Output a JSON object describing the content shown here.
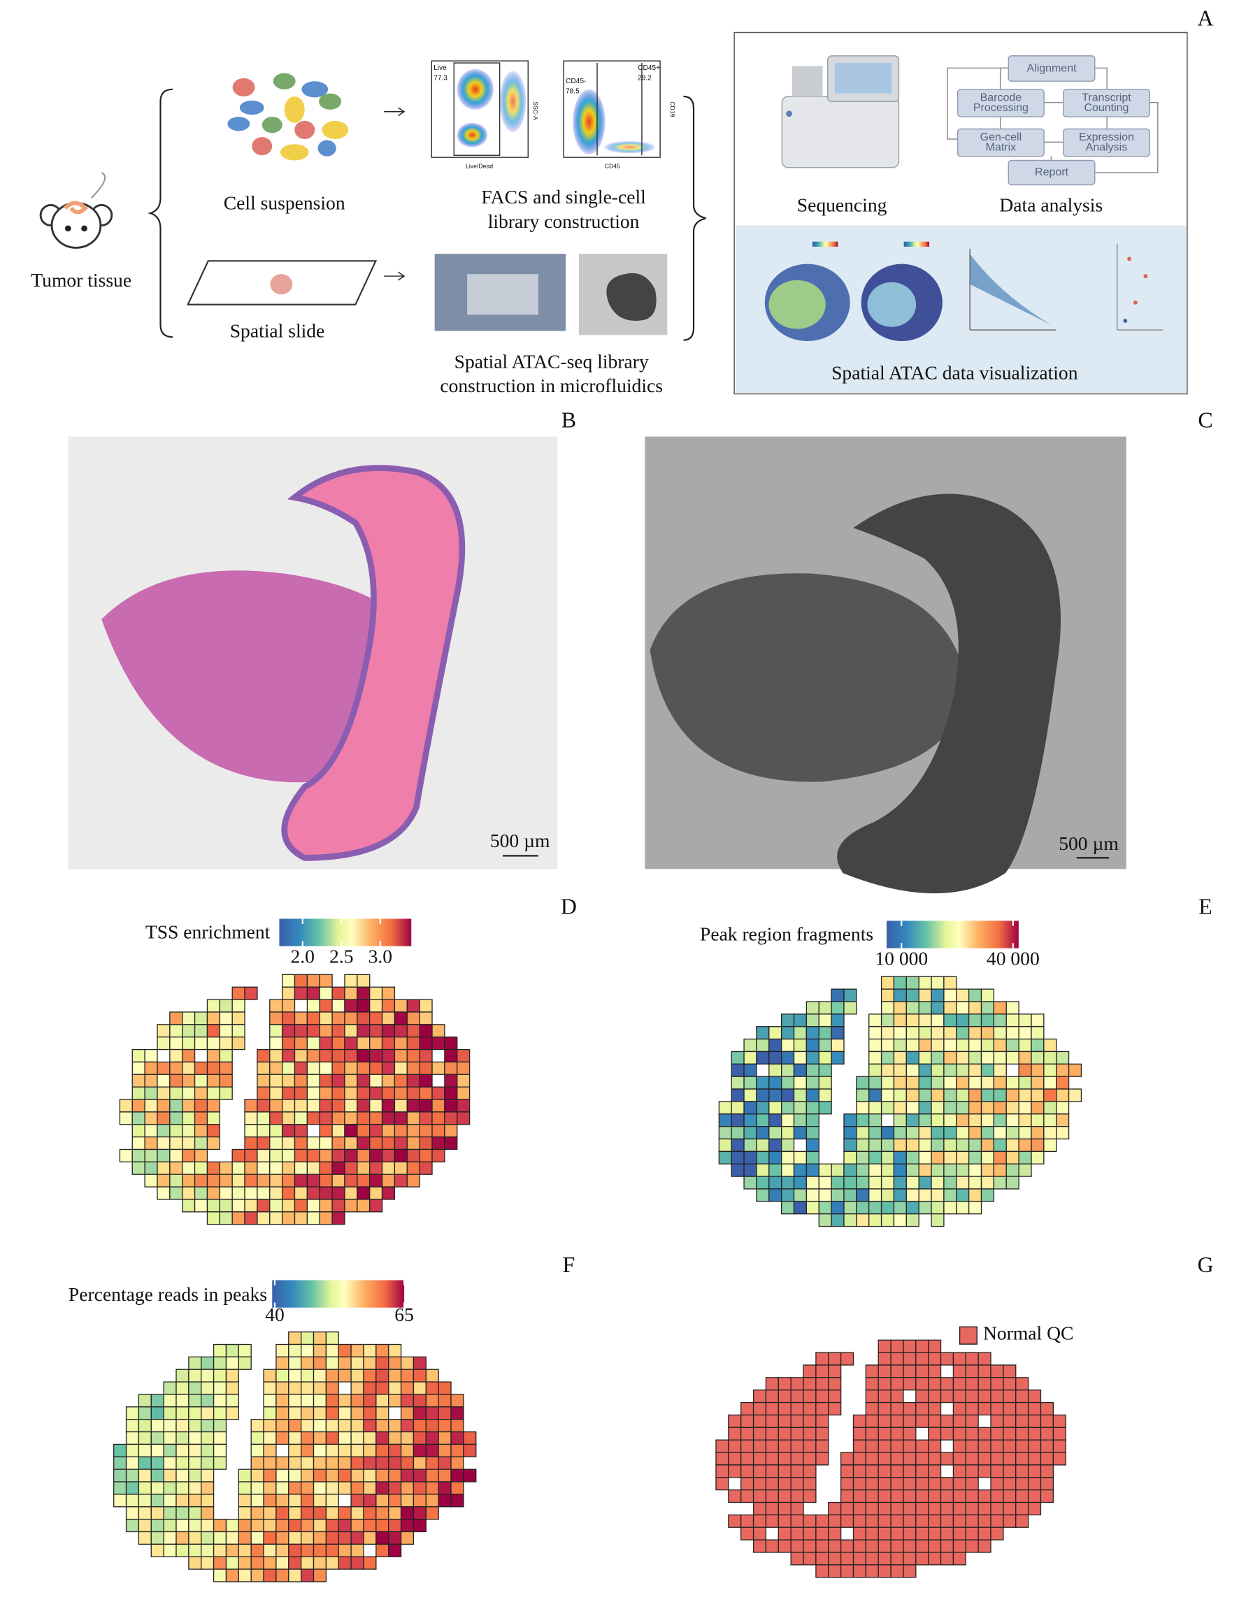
{
  "panels": [
    "A",
    "B",
    "C",
    "D",
    "E",
    "F",
    "G"
  ],
  "panel_a": {
    "tumor_tissue": "Tumor tissue",
    "cell_suspension": "Cell suspension",
    "spatial_slide": "Spatial slide",
    "facs_caption": [
      "FACS and single-cell",
      "library construction"
    ],
    "facs_plot_1": {
      "gate": "Live",
      "gate_value": "77.3",
      "y_axis": "SSC-A",
      "x_axis": "Live/Dead"
    },
    "facs_plot_2": {
      "gate_1": "CD45-",
      "gate_1_value": "78.5",
      "gate_2": "CD45+",
      "gate_2_value": "29.2",
      "x_axis": "CD45",
      "y_axis": "CD19"
    },
    "spatial_caption": [
      "Spatial ATAC-seq library",
      "construction in microfluidics"
    ],
    "sequencing": "Sequencing",
    "data_analysis": "Data analysis",
    "workflow": [
      [
        "Alignment"
      ],
      [
        "Barcode",
        "Processing"
      ],
      [
        "Transcript",
        "Counting"
      ],
      [
        "Gen-cell",
        "Matrix"
      ],
      [
        "Expression",
        "Analysis"
      ],
      [
        "Report"
      ]
    ],
    "visualization": "Spatial ATAC data visualization"
  },
  "panel_b": {
    "scale_bar": "500 µm"
  },
  "panel_c": {
    "scale_bar": "500 µm"
  },
  "panel_d": {
    "title": "TSS enrichment",
    "lim": [
      1.7,
      3.4
    ],
    "ticks": [
      {
        "value": 2,
        "label": "2.0"
      },
      2.5,
      {
        "value": 3,
        "label": "3.0"
      }
    ]
  },
  "panel_e": {
    "title": "Peak region fragments",
    "lim": [
      6000,
      41500
    ],
    "ticks": [
      {
        "value": 10000,
        "label": "10 000"
      },
      {
        "value": 40000,
        "label": "40 000"
      }
    ]
  },
  "panel_f": {
    "title": "Percentage reads in peaks",
    "lim": [
      39.5,
      65
    ],
    "ticks": [
      40,
      65
    ]
  },
  "panel_g": {
    "legend": "Normal QC",
    "color": "#e8685f"
  }
}
